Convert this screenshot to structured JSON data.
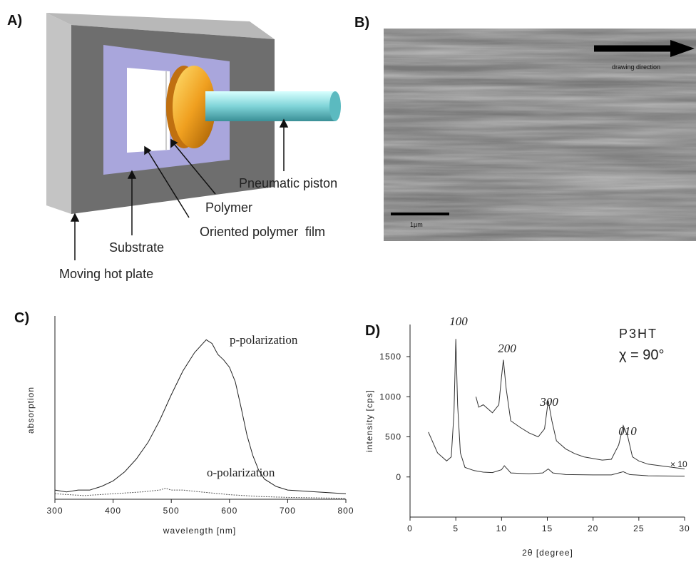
{
  "panel_a": {
    "label": "A)",
    "labels": [
      "Pneumatic piston",
      "Polymer",
      "Oriented polymer  film",
      "Substrate",
      "Moving hot plate"
    ]
  },
  "panel_b": {
    "label": "B)",
    "arrow_label": "drawing direction",
    "scale_bar": "1µm"
  },
  "chart_data": [
    {
      "type": "line",
      "panel_label": "C)",
      "x_label": "wavelength [nm]",
      "y_label": "absorption",
      "xlim": [
        300,
        800
      ],
      "xticks": [
        300,
        400,
        500,
        600,
        700,
        800
      ],
      "ylim": [
        0,
        1
      ],
      "series": [
        {
          "name": "p-polarization",
          "color": "#222222",
          "x": [
            300,
            320,
            340,
            360,
            380,
            400,
            420,
            440,
            460,
            480,
            500,
            520,
            540,
            560,
            570,
            580,
            590,
            600,
            610,
            620,
            630,
            640,
            650,
            660,
            680,
            700,
            750,
            800
          ],
          "values": [
            0.05,
            0.04,
            0.05,
            0.05,
            0.07,
            0.1,
            0.15,
            0.22,
            0.31,
            0.43,
            0.57,
            0.7,
            0.8,
            0.87,
            0.85,
            0.79,
            0.76,
            0.72,
            0.64,
            0.5,
            0.35,
            0.24,
            0.16,
            0.11,
            0.07,
            0.05,
            0.04,
            0.03
          ]
        },
        {
          "name": "o-polarization",
          "color": "#555555",
          "x": [
            300,
            350,
            400,
            450,
            480,
            490,
            500,
            520,
            550,
            600,
            650,
            700,
            800
          ],
          "values": [
            0.03,
            0.02,
            0.03,
            0.04,
            0.05,
            0.06,
            0.05,
            0.05,
            0.04,
            0.025,
            0.015,
            0.01,
            0.005
          ]
        }
      ]
    },
    {
      "type": "line",
      "panel_label": "D)",
      "x_label": "2θ [degree]",
      "y_label": "intensity [cps]",
      "xlim": [
        0,
        30
      ],
      "xticks": [
        0,
        5,
        10,
        15,
        20,
        25,
        30
      ],
      "ylim": [
        -500,
        1900
      ],
      "yticks": [
        0,
        500,
        1000,
        1500
      ],
      "annotations": [
        "100",
        "200",
        "300",
        "010",
        "P3HT",
        "χ = 90°",
        "× 10"
      ],
      "series": [
        {
          "color": "#333333",
          "x": [
            2,
            3,
            4,
            4.5,
            4.8,
            5,
            5.2,
            5.5,
            6,
            7,
            8,
            9,
            10,
            10.3,
            10.7,
            11,
            13,
            14.5,
            15.1,
            15.6,
            17,
            20,
            22,
            23.3,
            24,
            26,
            30
          ],
          "values": [
            560,
            300,
            200,
            250,
            800,
            1720,
            900,
            300,
            120,
            80,
            60,
            55,
            90,
            140,
            90,
            50,
            40,
            50,
            100,
            50,
            30,
            25,
            25,
            65,
            30,
            15,
            10
          ]
        },
        {
          "color": "#333333",
          "x": [
            7.2,
            7.5,
            8,
            9,
            9.7,
            10,
            10.2,
            10.5,
            11,
            12,
            13,
            14,
            14.7,
            15.1,
            15.5,
            16,
            17,
            18,
            19,
            20,
            21,
            22,
            22.8,
            23.3,
            23.8,
            24.3,
            25,
            26,
            28,
            30
          ],
          "values": [
            1000,
            870,
            900,
            800,
            900,
            1250,
            1460,
            1100,
            700,
            620,
            550,
            500,
            600,
            950,
            700,
            450,
            350,
            290,
            250,
            230,
            210,
            220,
            400,
            640,
            500,
            250,
            200,
            160,
            130,
            100
          ]
        }
      ]
    }
  ]
}
